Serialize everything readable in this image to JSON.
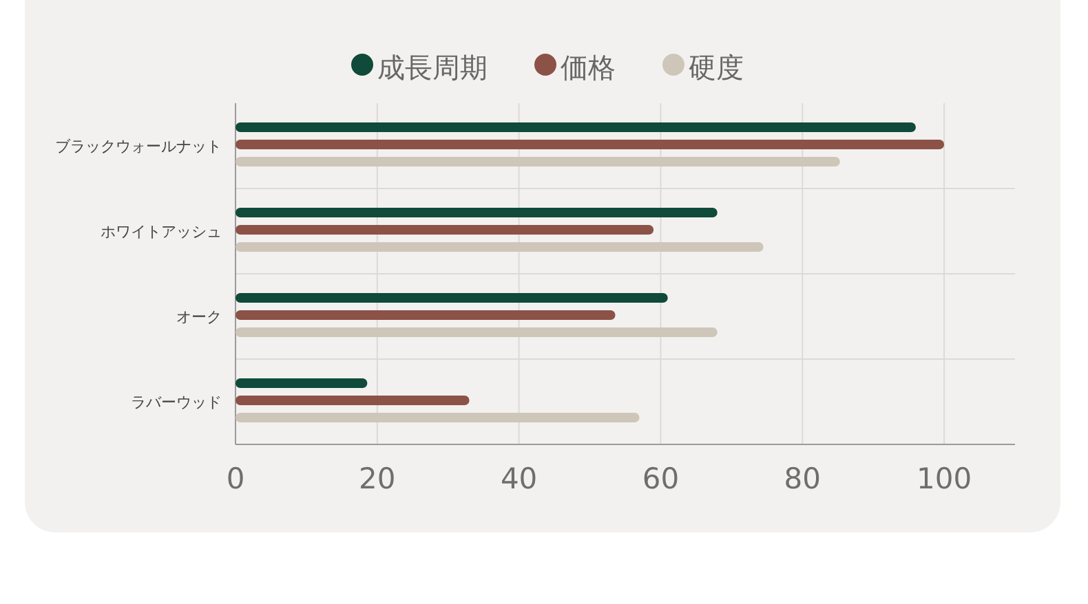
{
  "chart_data": {
    "type": "bar",
    "orientation": "horizontal",
    "categories": [
      "ブラックウォールナット",
      "ホワイトアッシュ",
      "オーク",
      "ラバーウッド"
    ],
    "series": [
      {
        "name": "成長周期",
        "color": "#0f4a3a",
        "values": [
          96,
          68,
          61,
          18.6
        ]
      },
      {
        "name": "価格",
        "color": "#8c5247",
        "values": [
          100,
          59,
          53.6,
          33
        ]
      },
      {
        "name": "硬度",
        "color": "#cfc6ba",
        "values": [
          85.3,
          74.5,
          68,
          57
        ]
      }
    ],
    "xlim": [
      0,
      110
    ],
    "xticks": [
      0,
      20,
      40,
      60,
      80,
      100
    ],
    "grid": true,
    "legend": "top"
  }
}
